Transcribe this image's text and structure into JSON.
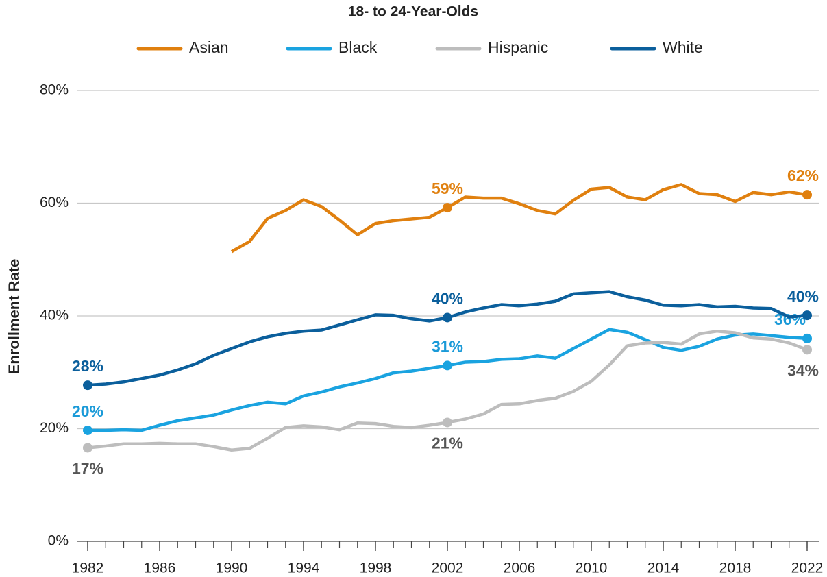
{
  "chart_data": {
    "type": "line",
    "title": "18- to 24-Year-Olds",
    "y_label": "Enrollment Rate",
    "x": [
      1982,
      1983,
      1984,
      1985,
      1986,
      1987,
      1988,
      1989,
      1990,
      1991,
      1992,
      1993,
      1994,
      1995,
      1996,
      1997,
      1998,
      1999,
      2000,
      2001,
      2002,
      2003,
      2004,
      2005,
      2006,
      2007,
      2008,
      2009,
      2010,
      2011,
      2012,
      2013,
      2014,
      2015,
      2016,
      2017,
      2018,
      2019,
      2020,
      2021,
      2022
    ],
    "xlim": [
      1982,
      2022
    ],
    "xticks": [
      1982,
      1986,
      1990,
      1994,
      1998,
      2002,
      2006,
      2010,
      2014,
      2018,
      2022
    ],
    "ylim": [
      0,
      80
    ],
    "yticks": [
      {
        "value": 0,
        "label": "0%"
      },
      {
        "value": 20,
        "label": "20%"
      },
      {
        "value": 40,
        "label": "40%"
      },
      {
        "value": 60,
        "label": "60%"
      },
      {
        "value": 80,
        "label": "80%"
      }
    ],
    "grid": true,
    "legend": "top",
    "series": [
      {
        "name": "Asian",
        "color": "#e0800f",
        "label_color": "#e0800f",
        "values": [
          null,
          null,
          null,
          null,
          null,
          null,
          null,
          null,
          51.4,
          53.2,
          57.3,
          58.7,
          60.6,
          59.4,
          57.0,
          54.4,
          56.4,
          56.9,
          57.2,
          57.5,
          59.2,
          61.1,
          60.9,
          60.9,
          59.9,
          58.7,
          58.1,
          60.5,
          62.5,
          62.8,
          61.1,
          60.6,
          62.4,
          63.3,
          61.7,
          61.5,
          60.3,
          61.9,
          61.5,
          62.0,
          61.5
        ],
        "value_labels": [
          null,
          null,
          null,
          null,
          null,
          null,
          null,
          null,
          null,
          null,
          null,
          null,
          null,
          null,
          null,
          null,
          null,
          null,
          null,
          null,
          "59%",
          null,
          null,
          null,
          null,
          null,
          null,
          null,
          null,
          null,
          null,
          null,
          null,
          null,
          null,
          null,
          null,
          null,
          null,
          null,
          "62%"
        ]
      },
      {
        "name": "Black",
        "color": "#1aa3e0",
        "label_color": "#1a9ad8",
        "values": [
          19.7,
          19.7,
          19.8,
          19.7,
          20.6,
          21.4,
          21.9,
          22.4,
          23.3,
          24.1,
          24.7,
          24.4,
          25.8,
          26.5,
          27.4,
          28.1,
          28.9,
          29.9,
          30.2,
          30.7,
          31.2,
          31.8,
          31.9,
          32.3,
          32.4,
          32.9,
          32.5,
          34.2,
          35.9,
          37.6,
          37.1,
          35.8,
          34.4,
          33.9,
          34.6,
          35.9,
          36.6,
          36.8,
          36.5,
          36.2,
          36.0
        ],
        "value_labels": [
          "20%",
          null,
          null,
          null,
          null,
          null,
          null,
          null,
          null,
          null,
          null,
          null,
          null,
          null,
          null,
          null,
          null,
          null,
          null,
          null,
          "31%",
          null,
          null,
          null,
          null,
          null,
          null,
          null,
          null,
          null,
          null,
          null,
          null,
          null,
          null,
          null,
          null,
          null,
          null,
          null,
          "36%"
        ]
      },
      {
        "name": "Hispanic",
        "color": "#bdbdbd",
        "label_color": "#555555",
        "values": [
          16.6,
          16.9,
          17.3,
          17.3,
          17.4,
          17.3,
          17.3,
          16.8,
          16.2,
          16.5,
          18.3,
          20.2,
          20.5,
          20.3,
          19.8,
          21.0,
          20.9,
          20.4,
          20.2,
          20.6,
          21.1,
          21.7,
          22.6,
          24.3,
          24.4,
          25.0,
          25.4,
          26.6,
          28.4,
          31.3,
          34.7,
          35.2,
          35.3,
          35.0,
          36.8,
          37.3,
          37.0,
          36.1,
          35.9,
          35.2,
          34.0
        ],
        "value_labels": [
          "17%",
          null,
          null,
          null,
          null,
          null,
          null,
          null,
          null,
          null,
          null,
          null,
          null,
          null,
          null,
          null,
          null,
          null,
          null,
          null,
          "21%",
          null,
          null,
          null,
          null,
          null,
          null,
          null,
          null,
          null,
          null,
          null,
          null,
          null,
          null,
          null,
          null,
          null,
          null,
          null,
          "34%"
        ]
      },
      {
        "name": "White",
        "color": "#0b5f9c",
        "label_color": "#0b5f9c",
        "values": [
          27.7,
          27.9,
          28.3,
          28.9,
          29.5,
          30.4,
          31.5,
          33.0,
          34.2,
          35.4,
          36.3,
          36.9,
          37.3,
          37.5,
          38.4,
          39.3,
          40.2,
          40.1,
          39.5,
          39.1,
          39.7,
          40.7,
          41.4,
          42.0,
          41.8,
          42.1,
          42.6,
          43.9,
          44.1,
          44.3,
          43.4,
          42.8,
          41.9,
          41.8,
          42.0,
          41.6,
          41.7,
          41.4,
          41.3,
          39.8,
          40.1
        ],
        "value_labels": [
          "28%",
          null,
          null,
          null,
          null,
          null,
          null,
          null,
          null,
          null,
          null,
          null,
          null,
          null,
          null,
          null,
          null,
          null,
          null,
          null,
          "40%",
          null,
          null,
          null,
          null,
          null,
          null,
          null,
          null,
          null,
          null,
          null,
          null,
          null,
          null,
          null,
          null,
          null,
          null,
          null,
          "40%"
        ]
      }
    ]
  }
}
